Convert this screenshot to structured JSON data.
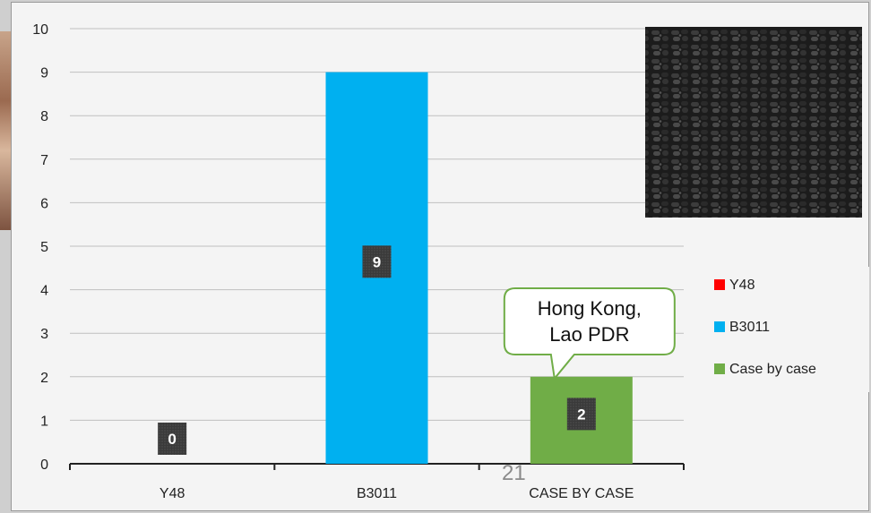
{
  "chart_data": {
    "type": "bar",
    "categories": [
      "Y48",
      "B3011",
      "CASE BY CASE"
    ],
    "values": [
      0,
      9,
      2
    ],
    "data_labels": [
      "0",
      "9",
      "2"
    ],
    "legend": [
      {
        "name": "Y48",
        "color": "#ff0000"
      },
      {
        "name": "B3011",
        "color": "#00b0f0"
      },
      {
        "name": "Case by case",
        "color": "#70ad47"
      }
    ],
    "bar_colors": [
      "#ff0000",
      "#00b0f0",
      "#70ad47"
    ],
    "ylim": [
      0,
      10
    ],
    "yticks": [
      "0",
      "1",
      "2",
      "3",
      "4",
      "5",
      "6",
      "7",
      "8",
      "9",
      "10"
    ],
    "grid": true,
    "legend_position": "right",
    "title": "",
    "xlabel": "",
    "ylabel": ""
  },
  "callout": {
    "line1": "Hong Kong,",
    "line2": "Lao PDR",
    "border_color": "#70ad47"
  },
  "slide_number": "21",
  "photo": {
    "icon": "black-plastic-pellets-image"
  }
}
